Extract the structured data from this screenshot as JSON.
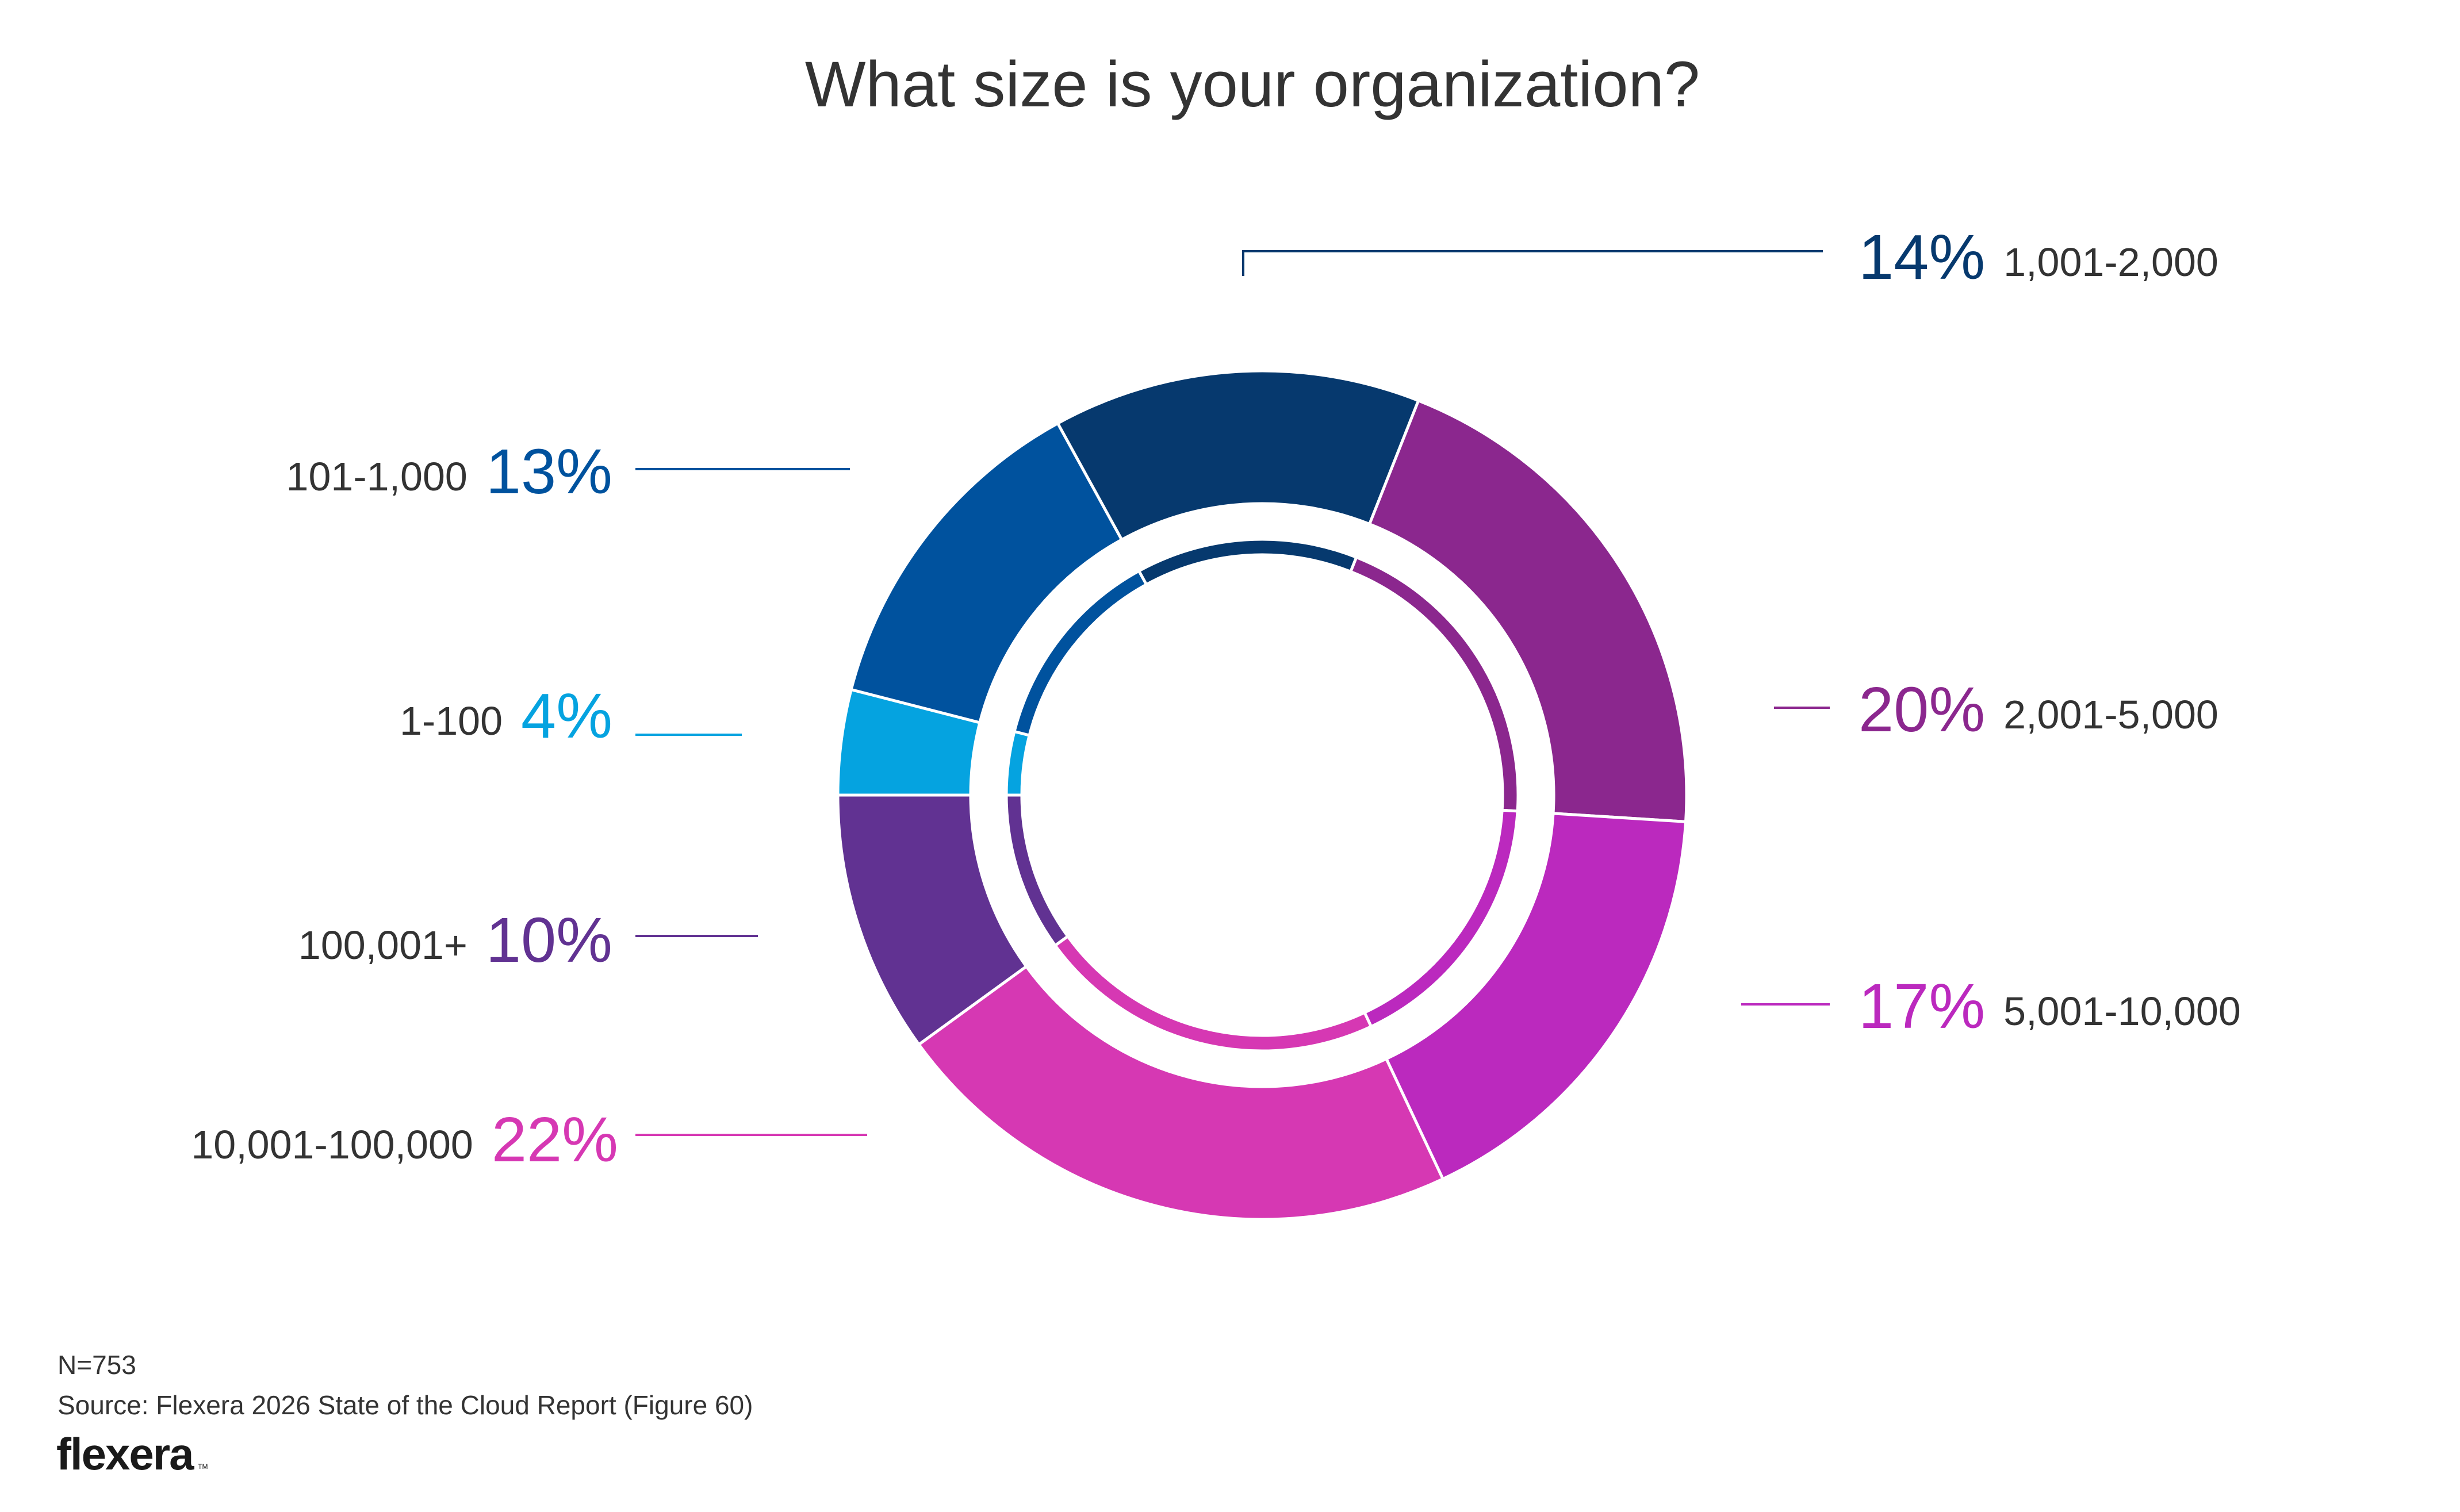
{
  "chart_data": {
    "type": "pie",
    "variant": "donut",
    "title": "What size is your organization?",
    "unit": "%",
    "start": "left (9 o'clock), clockwise",
    "slices": [
      {
        "label": "1-100",
        "value": 4,
        "value_label": "4%",
        "color": "#05A3E0",
        "label_side": "left"
      },
      {
        "label": "101-1,000",
        "value": 13,
        "value_label": "13%",
        "color": "#00529E",
        "label_side": "left"
      },
      {
        "label": "1,001-2,000",
        "value": 14,
        "value_label": "14%",
        "color": "#06396E",
        "label_side": "right"
      },
      {
        "label": "2,001-5,000",
        "value": 20,
        "value_label": "20%",
        "color": "#8B278E",
        "label_side": "right"
      },
      {
        "label": "5,001-10,000",
        "value": 17,
        "value_label": "17%",
        "color": "#BB29BE",
        "label_side": "right"
      },
      {
        "label": "10,001-100,000",
        "value": 22,
        "value_label": "22%",
        "color": "#D638B3",
        "label_side": "left"
      },
      {
        "label": "100,001+",
        "value": 10,
        "value_label": "10%",
        "color": "#613292",
        "label_side": "left"
      }
    ]
  },
  "footer": {
    "n": "N=753",
    "source": "Source: Flexera 2026 State of the Cloud Report (Figure 60)",
    "logo": "flexera",
    "logo_tm": "TM"
  }
}
